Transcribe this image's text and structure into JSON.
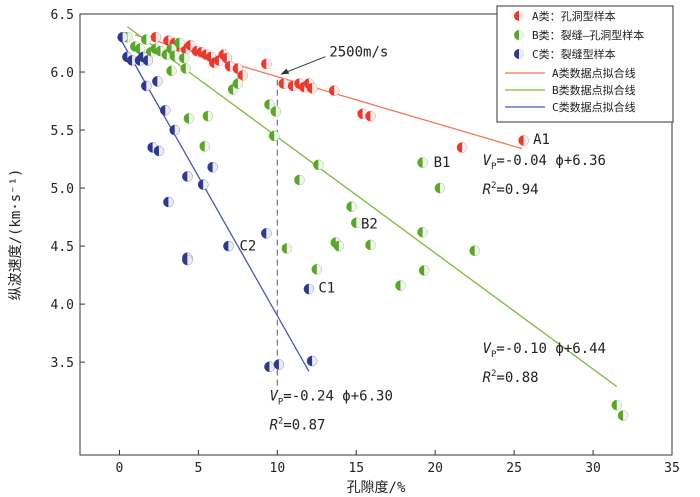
{
  "chart_data": {
    "type": "scatter",
    "xlabel": "孔隙度/%",
    "ylabel": "纵波速度/(km·s⁻¹)",
    "xlim": [
      -2.5,
      35
    ],
    "ylim": [
      2.7,
      6.5
    ],
    "xticks": [
      0,
      5,
      10,
      15,
      20,
      25,
      30,
      35
    ],
    "yticks": [
      3.5,
      4.0,
      4.5,
      5.0,
      5.5,
      6.0,
      6.5
    ],
    "series": [
      {
        "name": "A类：孔洞型样本",
        "color": "#e63b2e",
        "points": [
          [
            2.3,
            6.3
          ],
          [
            3.1,
            6.27
          ],
          [
            3.5,
            6.25
          ],
          [
            3.8,
            6.22
          ],
          [
            4.2,
            6.2
          ],
          [
            4.5,
            6.23
          ],
          [
            4.9,
            6.18
          ],
          [
            5.2,
            6.17
          ],
          [
            5.5,
            6.15
          ],
          [
            5.8,
            6.13
          ],
          [
            6.0,
            6.08
          ],
          [
            6.3,
            6.1
          ],
          [
            6.6,
            6.15
          ],
          [
            6.8,
            6.12
          ],
          [
            7.0,
            6.05
          ],
          [
            7.5,
            6.03
          ],
          [
            7.8,
            5.97
          ],
          [
            9.3,
            6.07
          ],
          [
            10.4,
            5.9
          ],
          [
            11.0,
            5.88
          ],
          [
            11.4,
            5.9
          ],
          [
            11.7,
            5.87
          ],
          [
            12.0,
            5.9
          ],
          [
            12.2,
            5.86
          ],
          [
            13.6,
            5.84
          ],
          [
            15.4,
            5.64
          ],
          [
            15.9,
            5.62
          ],
          [
            21.7,
            5.35
          ],
          [
            25.6,
            5.41
          ]
        ]
      },
      {
        "name": "B类：裂缝—孔洞型样本",
        "color": "#5aa52a",
        "points": [
          [
            0.5,
            6.3
          ],
          [
            1.0,
            6.22
          ],
          [
            1.3,
            6.2
          ],
          [
            1.7,
            6.28
          ],
          [
            2.0,
            6.17
          ],
          [
            2.3,
            6.2
          ],
          [
            2.6,
            6.18
          ],
          [
            3.0,
            6.15
          ],
          [
            3.3,
            6.2
          ],
          [
            3.5,
            6.14
          ],
          [
            3.8,
            6.25
          ],
          [
            4.1,
            6.12
          ],
          [
            3.3,
            6.01
          ],
          [
            4.2,
            6.03
          ],
          [
            7.2,
            5.85
          ],
          [
            7.5,
            5.9
          ],
          [
            9.5,
            5.72
          ],
          [
            9.9,
            5.66
          ],
          [
            9.8,
            5.45
          ],
          [
            4.4,
            5.6
          ],
          [
            5.6,
            5.62
          ],
          [
            5.4,
            5.36
          ],
          [
            12.6,
            5.2
          ],
          [
            11.4,
            5.07
          ],
          [
            14.7,
            4.84
          ],
          [
            15.0,
            4.7
          ],
          [
            13.7,
            4.53
          ],
          [
            13.9,
            4.5
          ],
          [
            15.9,
            4.51
          ],
          [
            10.6,
            4.48
          ],
          [
            12.5,
            4.3
          ],
          [
            17.8,
            4.16
          ],
          [
            19.2,
            4.62
          ],
          [
            19.3,
            4.29
          ],
          [
            19.2,
            5.22
          ],
          [
            20.3,
            5.0
          ],
          [
            22.5,
            4.46
          ],
          [
            31.5,
            3.13
          ],
          [
            31.9,
            3.04
          ]
        ]
      },
      {
        "name": "C类：裂缝型样本",
        "color": "#2d3a8c",
        "points": [
          [
            0.2,
            6.3
          ],
          [
            0.5,
            6.13
          ],
          [
            0.8,
            6.1
          ],
          [
            1.3,
            6.1
          ],
          [
            1.5,
            6.13
          ],
          [
            1.8,
            6.1
          ],
          [
            1.7,
            5.88
          ],
          [
            2.4,
            5.92
          ],
          [
            2.9,
            5.67
          ],
          [
            3.5,
            5.5
          ],
          [
            2.1,
            5.35
          ],
          [
            2.5,
            5.32
          ],
          [
            4.3,
            5.1
          ],
          [
            5.3,
            5.03
          ],
          [
            5.9,
            5.18
          ],
          [
            3.1,
            4.88
          ],
          [
            4.3,
            4.4
          ],
          [
            4.3,
            4.38
          ],
          [
            6.9,
            4.5
          ],
          [
            9.3,
            4.61
          ],
          [
            12.0,
            4.13
          ],
          [
            9.5,
            3.46
          ],
          [
            10.1,
            3.48
          ],
          [
            12.2,
            3.51
          ]
        ]
      }
    ],
    "fit_lines": [
      {
        "name": "A类数据点拟合线",
        "color": "#f07a5a",
        "slope": -0.04,
        "intercept": 6.36,
        "x_range": [
          1.0,
          25.5
        ]
      },
      {
        "name": "B类数据点拟合线",
        "color": "#7dbb3a",
        "slope": -0.1,
        "intercept": 6.44,
        "x_range": [
          0.5,
          31.5
        ]
      },
      {
        "name": "C类数据点拟合线",
        "color": "#4a56b8",
        "slope": -0.24,
        "intercept": 6.3,
        "x_range": [
          0.0,
          12.0
        ]
      }
    ],
    "annotations": {
      "threshold": {
        "label": "2500m/s",
        "x": 10,
        "y": 5.96
      },
      "group_labels": [
        {
          "text": "A1",
          "x": 26.2,
          "y": 5.38
        },
        {
          "text": "B1",
          "x": 19.9,
          "y": 5.18
        },
        {
          "text": "B2",
          "x": 15.3,
          "y": 4.65
        },
        {
          "text": "C2",
          "x": 7.6,
          "y": 4.46
        },
        {
          "text": "C1",
          "x": 12.6,
          "y": 4.1
        }
      ],
      "equations": [
        {
          "v": "V",
          "sub": "P",
          "eq": "=-0.04 ϕ+6.36",
          "r2_base": "R",
          "r2_exp": "2",
          "r2_val": "=0.94",
          "x": 23.0,
          "y": 5.2,
          "y2": 4.95
        },
        {
          "v": "V",
          "sub": "P",
          "eq": "=-0.10 ϕ+6.44",
          "r2_base": "R",
          "r2_exp": "2",
          "r2_val": "=0.88",
          "x": 23.0,
          "y": 3.58,
          "y2": 3.33
        },
        {
          "v": "V",
          "sub": "P",
          "eq": "=-0.24 ϕ+6.30",
          "r2_base": "R",
          "r2_exp": "2",
          "r2_val": "=0.87",
          "x": 9.5,
          "y": 3.17,
          "y2": 2.92
        }
      ]
    }
  }
}
